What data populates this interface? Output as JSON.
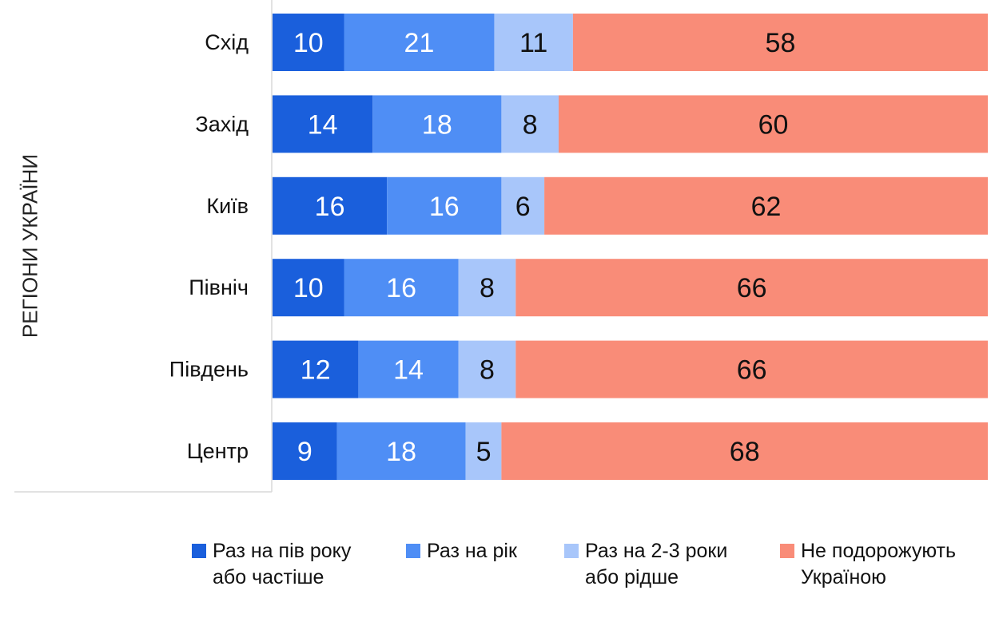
{
  "chart_data": {
    "type": "bar",
    "orientation": "horizontal",
    "stacked": true,
    "ylabel": "РЕГІОНИ УКРАЇНИ",
    "categories": [
      "Схід",
      "Захід",
      "Київ",
      "Північ",
      "Південь",
      "Центр"
    ],
    "series": [
      {
        "name": "Раз на пів року\nабо частіше",
        "color": "#1a5fdc",
        "values": [
          10,
          14,
          16,
          10,
          12,
          9
        ]
      },
      {
        "name": "Раз на рік",
        "color": "#4f8ef5",
        "values": [
          21,
          18,
          16,
          16,
          14,
          18
        ]
      },
      {
        "name": "Раз на 2-3 роки\nабо рідше",
        "color": "#a8c6fa",
        "values": [
          11,
          8,
          6,
          8,
          8,
          5
        ]
      },
      {
        "name": "Не подорожують\nУкраїною",
        "color": "#f98c78",
        "values": [
          58,
          60,
          62,
          66,
          66,
          68
        ]
      }
    ],
    "xlim": [
      0,
      100
    ],
    "grid": false,
    "legend_position": "bottom"
  }
}
